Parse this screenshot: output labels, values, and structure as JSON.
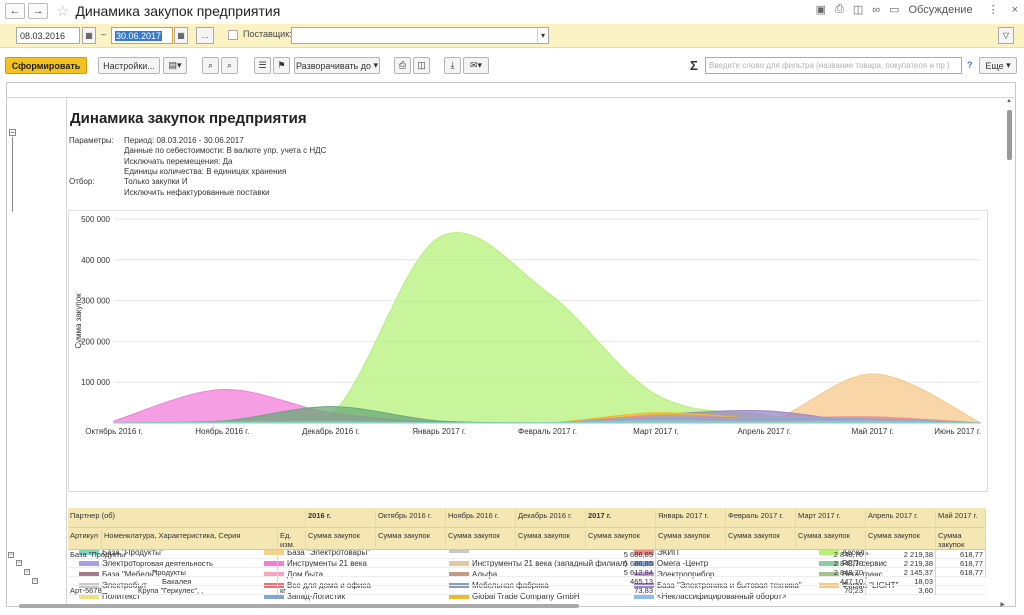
{
  "window": {
    "title": "Динамика закупок предприятия",
    "discuss_label": "Обсуждение"
  },
  "filters": {
    "date_from": "08.03.2016",
    "date_sep": "–",
    "date_to": "30.06.2017",
    "supplier_label": "Поставщик:",
    "supplier_value": "",
    "dots": "..."
  },
  "toolbar": {
    "generate": "Сформировать",
    "settings": "Настройки...",
    "expand_to": "Разворачивать до",
    "more": "Еще",
    "filter_placeholder": "Введите слово для фильтра (название товара, покупателя и пр.)",
    "help": "?"
  },
  "report": {
    "title": "Динамика закупок предприятия",
    "params_label": "Параметры:",
    "params": [
      "Период: 08.03.2016 - 30.06.2017",
      "Данные по себестоимости: В валюте упр. учета с НДС",
      "Исключать перемещения: Да",
      "Единицы количества: В единицах хранения"
    ],
    "filter_label": "Отбор:",
    "filters": [
      "Только закупки И",
      "Исключить нефактурованные поставки"
    ]
  },
  "chart_data": {
    "type": "area",
    "ylabel": "Сумма закупок",
    "ylim": [
      0,
      500000
    ],
    "yticks": [
      "500 000",
      "400 000",
      "300 000",
      "200 000",
      "100 000"
    ],
    "x": [
      "Октябрь 2016 г.",
      "Ноябрь 2016 г.",
      "Декабрь 2016 г.",
      "Январь 2017 г.",
      "Февраль 2017 г.",
      "Март 2017 г.",
      "Апрель 2017 г.",
      "Май 2017 г.",
      "Июнь 2017 г."
    ],
    "legend_position": "bottom",
    "series": [
      {
        "name": "База \"Продукты\"",
        "color": "#7fd4c6",
        "values": [
          0,
          2000,
          3000,
          1000,
          1000,
          5000,
          3000,
          4000,
          0
        ]
      },
      {
        "name": "База \"Электротовары\"",
        "color": "#f2d28a",
        "values": [
          0,
          0,
          0,
          0,
          0,
          0,
          0,
          0,
          0
        ]
      },
      {
        "name": "",
        "color": "#c8c8c8",
        "values": [
          0,
          0,
          0,
          0,
          0,
          0,
          0,
          0,
          0
        ]
      },
      {
        "name": "ЭКИП",
        "color": "#ef8a8a",
        "values": [
          0,
          0,
          0,
          0,
          0,
          18000,
          12000,
          15000,
          0
        ]
      },
      {
        "name": "Ассоль",
        "color": "#b5f07a",
        "values": [
          0,
          2000,
          20000,
          455000,
          320000,
          70000,
          20000,
          0,
          0
        ]
      },
      {
        "name": "Электро",
        "color": "#a7a0e6",
        "values": [
          0,
          0,
          0,
          0,
          0,
          0,
          0,
          0,
          0
        ]
      },
      {
        "name": "Инструменты 21 века",
        "color": "#f37ed9",
        "values": [
          5000,
          82000,
          25000,
          2000,
          0,
          0,
          0,
          0,
          0
        ]
      },
      {
        "name": "Инструменты 21 века (западный филиал)",
        "color": "#e6c79f",
        "values": [
          0,
          0,
          0,
          0,
          0,
          0,
          0,
          0,
          0
        ]
      },
      {
        "name": "Омега -Центр",
        "color": "#8aa8d8",
        "values": [
          0,
          0,
          0,
          0,
          0,
          15000,
          12000,
          10000,
          0
        ]
      },
      {
        "name": "РСП-сервис",
        "color": "#8fc9a0",
        "values": [
          0,
          0,
          0,
          0,
          0,
          0,
          0,
          0,
          0
        ]
      },
      {
        "name": "База \"Мебель\"",
        "color": "#a97a8a",
        "values": [
          0,
          0,
          0,
          0,
          0,
          0,
          0,
          0,
          0
        ]
      },
      {
        "name": "Дом быта",
        "color": "#f5a5c0",
        "values": [
          0,
          0,
          0,
          0,
          0,
          0,
          0,
          0,
          0
        ]
      },
      {
        "name": "Альфа",
        "color": "#c49a84",
        "values": [
          0,
          0,
          0,
          0,
          0,
          0,
          0,
          0,
          0
        ]
      },
      {
        "name": "Электроприбор",
        "color": "#c7a0dc",
        "values": [
          0,
          0,
          0,
          0,
          0,
          0,
          0,
          0,
          0
        ]
      },
      {
        "name": "Вега-транс",
        "color": "#a4c48a",
        "values": [
          0,
          0,
          0,
          0,
          0,
          0,
          0,
          0,
          0
        ]
      },
      {
        "name": "Электробыт",
        "color": "#c8c8c8",
        "values": [
          0,
          0,
          0,
          0,
          0,
          0,
          0,
          0,
          0
        ]
      },
      {
        "name": "Все для дома и офиса",
        "color": "#e86f6f",
        "values": [
          0,
          0,
          0,
          0,
          0,
          0,
          0,
          0,
          0
        ]
      },
      {
        "name": "Мебельная фабрика",
        "color": "#8a9eb5",
        "values": [
          0,
          0,
          0,
          0,
          0,
          0,
          0,
          0,
          0
        ]
      },
      {
        "name": "База \"Электроника и бытовая техника\"",
        "color": "#9a86c8",
        "values": [
          0,
          0,
          0,
          0,
          0,
          20000,
          30000,
          0,
          0
        ]
      },
      {
        "name": "Фирма \"LIGHT\"",
        "color": "#f5c88a",
        "values": [
          0,
          0,
          0,
          0,
          0,
          0,
          0,
          120000,
          0
        ]
      },
      {
        "name": "Политекст",
        "color": "#f2e27a",
        "values": [
          0,
          0,
          0,
          0,
          0,
          0,
          0,
          0,
          0
        ]
      },
      {
        "name": "Запад-Логистик",
        "color": "#7fa8d8",
        "values": [
          0,
          0,
          0,
          0,
          0,
          0,
          0,
          0,
          0
        ]
      },
      {
        "name": "Global Trade Company GmbH",
        "color": "#f5b820",
        "values": [
          0,
          0,
          0,
          0,
          0,
          25000,
          10000,
          0,
          0
        ]
      },
      {
        "name": "<Неклассифицированный оборот>",
        "color": "#8ac0f0",
        "values": [
          0,
          0,
          0,
          0,
          0,
          0,
          0,
          0,
          0
        ]
      },
      {
        "name": "",
        "color": "#6aa87a",
        "values": [
          0,
          5000,
          40000,
          5000,
          0,
          0,
          0,
          0,
          0
        ]
      }
    ]
  },
  "table": {
    "h1": [
      "Партнер (об)",
      "2016 г.",
      "Октябрь 2016 г.",
      "Ноябрь 2016 г.",
      "Декабрь 2016 г.",
      "2017 г.",
      "Январь 2017 г.",
      "Февраль 2017 г.",
      "Март 2017 г.",
      "Апрель 2017 г.",
      "Май 2017 г."
    ],
    "h2": [
      "Артикул",
      "Номенклатура, Характеристика, Серия",
      "Ед. изм.",
      "Сумма закупок",
      "Сумма закупок",
      "Сумма закупок",
      "Сумма закупок",
      "Сумма закупок",
      "Сумма закупок",
      "Сумма закупок",
      "Сумма закупок",
      "Сумма закупок",
      "Сумма закупок"
    ],
    "rows": [
      {
        "art": "",
        "name": "База \"Продукты\"",
        "unit": "",
        "vals": [
          "",
          "",
          "",
          "",
          "5 686,85",
          "",
          "",
          "2 848,70",
          "2 219,38",
          "618,77"
        ]
      },
      {
        "art": "",
        "name": "Торговая деятельность",
        "unit": "",
        "vals": [
          "",
          "",
          "",
          "",
          "5 686,85",
          "",
          "",
          "2 848,70",
          "2 219,38",
          "618,77"
        ]
      },
      {
        "art": "",
        "name": "Продукты",
        "unit": "",
        "vals": [
          "",
          "",
          "",
          "",
          "5 612,84",
          "",
          "",
          "2 848,70",
          "2 145,37",
          "618,77"
        ]
      },
      {
        "art": "",
        "name": "Бакалея",
        "unit": "",
        "vals": [
          "",
          "",
          "",
          "",
          "465,13",
          "",
          "",
          "447,10",
          "18,03",
          ""
        ]
      },
      {
        "art": "Арт-5678",
        "name": "Крупа \"Геркулес\", ,",
        "unit": "кг",
        "vals": [
          "",
          "",
          "",
          "",
          "73,83",
          "",
          "",
          "70,23",
          "3,60",
          ""
        ]
      }
    ]
  }
}
